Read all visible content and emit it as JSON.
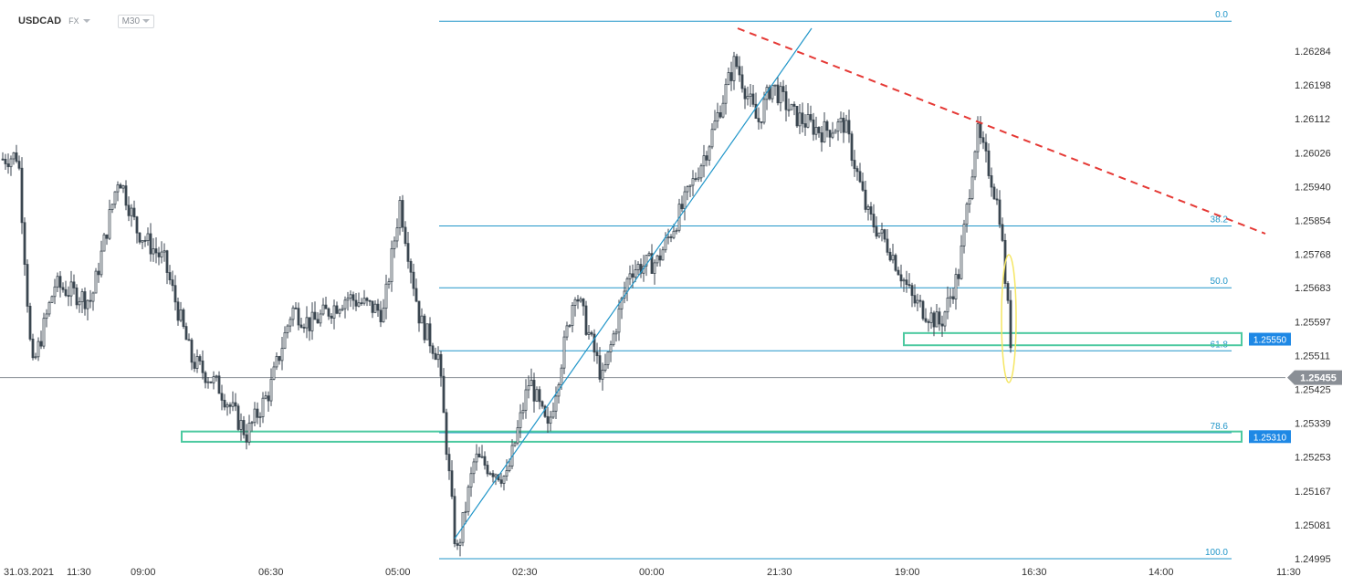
{
  "header": {
    "symbol": "USDCAD",
    "market": "FX",
    "timeframe": "M30"
  },
  "chart_data": {
    "type": "candlestick",
    "title": "USDCAD",
    "timeframe": "M30",
    "y_axis": {
      "ticks": [
        "1.26284",
        "1.26198",
        "1.26112",
        "1.26026",
        "1.25940",
        "1.25854",
        "1.25768",
        "1.25683",
        "1.25597",
        "1.25511",
        "1.25425",
        "1.25339",
        "1.25253",
        "1.25167",
        "1.25081",
        "1.24995"
      ],
      "range": [
        1.2497,
        1.264
      ]
    },
    "x_axis": {
      "ticks": [
        "31.03.2021",
        "11:30",
        "09:00",
        "06:30",
        "05:00",
        "02:30",
        "00:00",
        "21:30",
        "19:00",
        "16:30",
        "14:00",
        "11:30"
      ]
    },
    "current_price": {
      "value": "1.25455",
      "color": "#8a8f96"
    },
    "fibonacci": {
      "color": "#2196c9",
      "levels": [
        {
          "label": "0.0",
          "price": 1.2636
        },
        {
          "label": "38.2",
          "price": 1.2584
        },
        {
          "label": "50.0",
          "price": 1.25683
        },
        {
          "label": "61.8",
          "price": 1.25523
        },
        {
          "label": "78.6",
          "price": 1.25315
        },
        {
          "label": "100.0",
          "price": 1.24995
        }
      ]
    },
    "zones": [
      {
        "label": "1.25550",
        "price_top": 1.25568,
        "price_bottom": 1.25537,
        "color": "#4cc9a0"
      },
      {
        "label": "1.25310",
        "price_top": 1.25318,
        "price_bottom": 1.25292,
        "color": "#4cc9a0"
      }
    ],
    "trendlines": [
      {
        "name": "uptrend",
        "color": "#2196c9",
        "style": "solid"
      },
      {
        "name": "downtrend",
        "color": "#e53935",
        "style": "dashed"
      }
    ],
    "highlight": {
      "shape": "ellipse",
      "color": "#f5e663"
    },
    "candle_color": "#3b4650",
    "zone_label_color": "#1e88e5"
  }
}
